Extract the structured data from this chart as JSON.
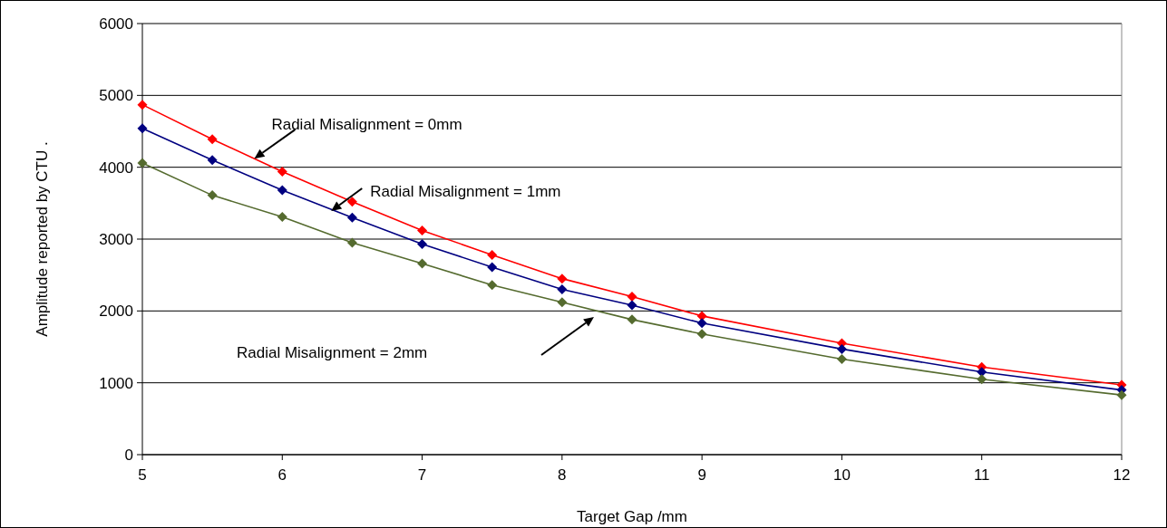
{
  "chart_data": {
    "type": "line",
    "xlabel": "Target Gap /mm",
    "ylabel": "Amplitude reported by CTU .",
    "x": [
      5,
      5.5,
      6,
      6.5,
      7,
      7.5,
      8,
      8.5,
      9,
      10,
      11,
      12
    ],
    "series": [
      {
        "color": "#ff0000",
        "values": [
          4870,
          4390,
          3940,
          3520,
          3120,
          2780,
          2450,
          2200,
          1930,
          1550,
          1220,
          970
        ]
      },
      {
        "color": "#000080",
        "values": [
          4540,
          4100,
          3680,
          3300,
          2930,
          2610,
          2300,
          2080,
          1830,
          1470,
          1150,
          900
        ]
      },
      {
        "color": "#556b2f",
        "values": [
          4060,
          3610,
          3310,
          2950,
          2660,
          2360,
          2120,
          1880,
          1680,
          1330,
          1050,
          830
        ]
      }
    ],
    "xlim": [
      5,
      12
    ],
    "xticks": [
      5,
      6,
      7,
      8,
      9,
      10,
      11,
      12
    ],
    "ylim": [
      0,
      6000
    ],
    "yticks": [
      0,
      1000,
      2000,
      3000,
      4000,
      5000,
      6000
    ],
    "grid": "y",
    "marker": "diamond",
    "line_style": "solid",
    "annotations": [
      {
        "text": "Radial Misalignment = 0mm",
        "x": 5.8,
        "y": 4120
      },
      {
        "text": "Radial Misalignment = 1mm",
        "x": 6.35,
        "y": 3390
      },
      "Radial Misalignment = 2mm"
    ]
  }
}
